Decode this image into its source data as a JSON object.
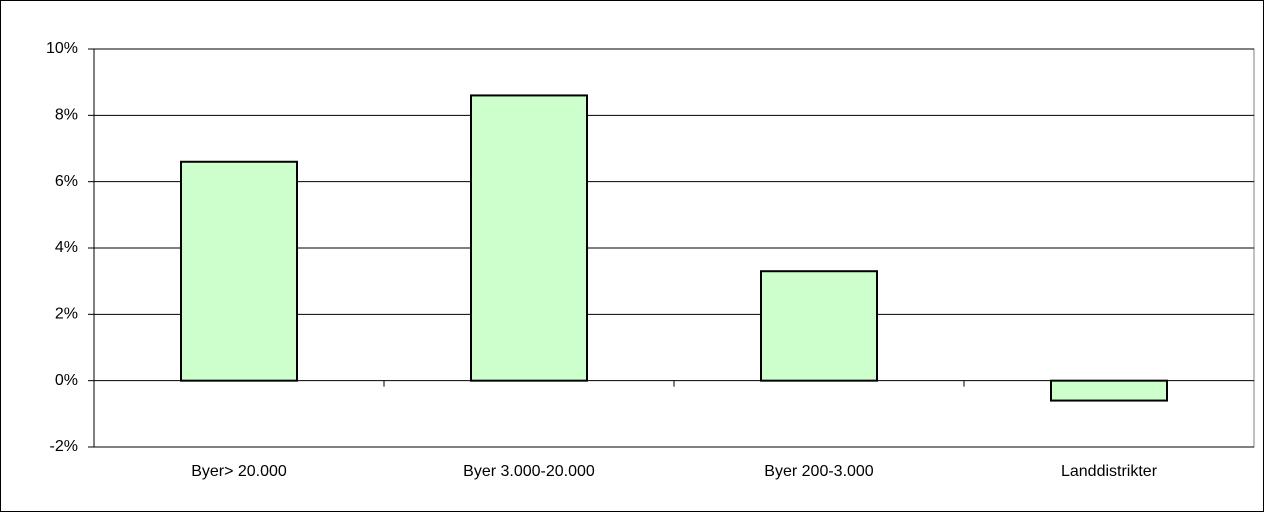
{
  "chart_data": {
    "type": "bar",
    "categories": [
      "Byer> 20.000",
      "Byer 3.000-20.000",
      "Byer 200-3.000",
      "Landdistrikter"
    ],
    "values": [
      6.6,
      8.6,
      3.3,
      -0.6
    ],
    "color": "#ccffcc",
    "ylim": [
      -2,
      10
    ],
    "yticks": [
      {
        "value": -2,
        "label": "-2%"
      },
      {
        "value": 0,
        "label": "0%"
      },
      {
        "value": 2,
        "label": "2%"
      },
      {
        "value": 4,
        "label": "4%"
      },
      {
        "value": 6,
        "label": "6%"
      },
      {
        "value": 8,
        "label": "8%"
      },
      {
        "value": 10,
        "label": "10%"
      }
    ],
    "grid": true
  }
}
